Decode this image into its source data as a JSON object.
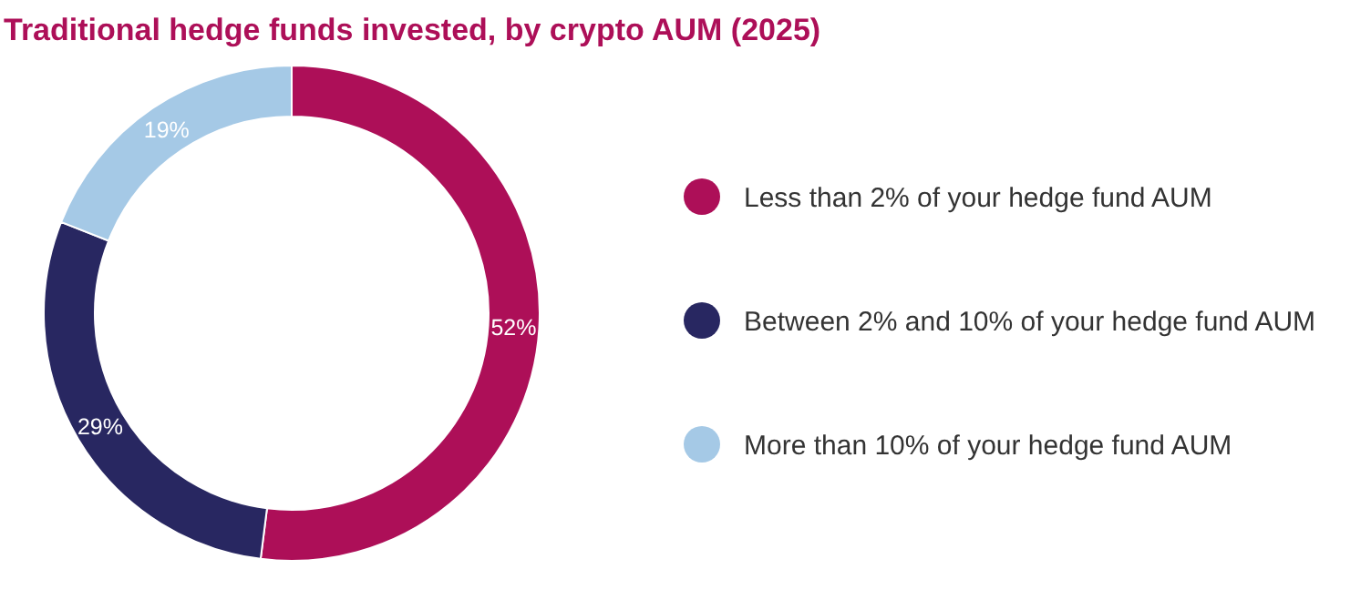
{
  "chart_data": {
    "type": "donut",
    "title": "Traditional hedge funds invested, by crypto AUM (2025)",
    "categories": [
      "Less than 2% of your hedge fund AUM",
      "Between 2% and 10% of your hedge fund AUM",
      "More than 10% of your hedge fund AUM"
    ],
    "values": [
      52,
      29,
      19
    ],
    "colors": [
      "#ad0f58",
      "#282761",
      "#a5c9e6"
    ],
    "value_labels": [
      "52%",
      "29%",
      "19%"
    ],
    "legend": "right"
  }
}
